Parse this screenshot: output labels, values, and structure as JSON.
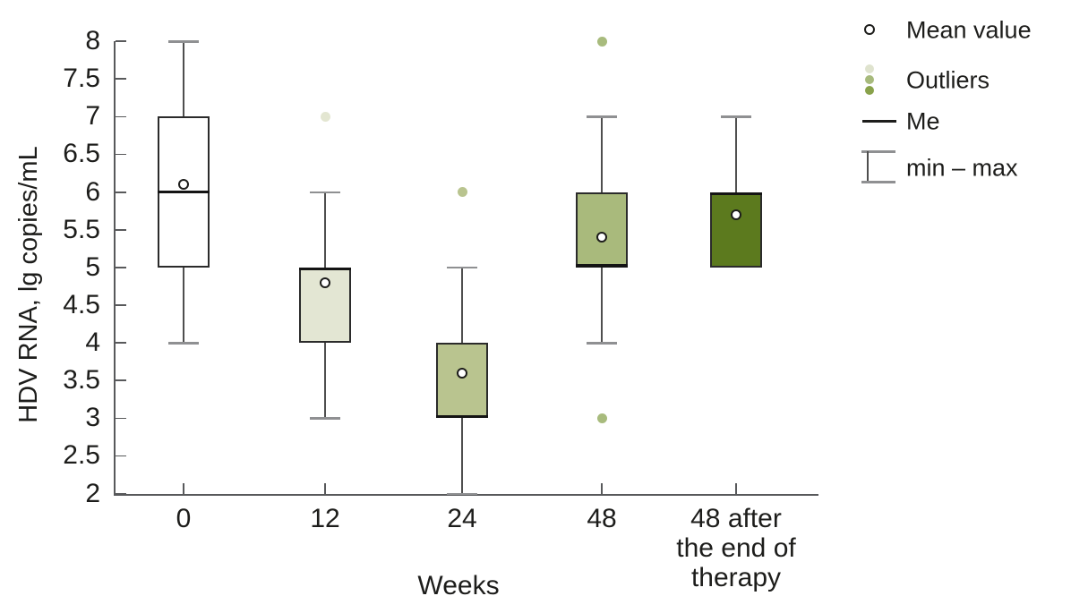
{
  "chart_data": {
    "type": "box",
    "title": "",
    "xlabel": "Weeks",
    "ylabel": "HDV RNA, lg copies/mL",
    "ylim": [
      2,
      8
    ],
    "grid": false,
    "yticks": [
      8,
      7.5,
      7,
      6.5,
      6,
      5.5,
      5,
      4.5,
      4,
      3.5,
      3,
      2.5,
      2
    ],
    "ytick_labels": [
      "8",
      "7.5",
      "7",
      "6.5",
      "6",
      "5.5",
      "5",
      "4.5",
      "4",
      "3.5",
      "3",
      "2.5",
      "2"
    ],
    "categories": [
      "0",
      "12",
      "24",
      "48",
      "48 after\nthe end of\ntherapy"
    ],
    "series": [
      {
        "category": "0",
        "min": 4,
        "q1": 5,
        "median": 6,
        "q3": 7,
        "max": 8,
        "mean": 6.1,
        "outliers": [],
        "fill": "#ffffff",
        "outlier_color": "#a8bb7d"
      },
      {
        "category": "12",
        "min": 3,
        "q1": 4,
        "median": 5,
        "q3": 5,
        "max": 6,
        "mean": 4.8,
        "outliers": [
          7
        ],
        "fill": "#e3e6d3",
        "outlier_color": "#e3e6d1"
      },
      {
        "category": "24",
        "min": 2,
        "q1": 3,
        "median": 3,
        "q3": 4,
        "max": 5,
        "mean": 3.6,
        "outliers": [
          6
        ],
        "fill": "#b9c48f",
        "outlier_color": "#b9c48f"
      },
      {
        "category": "48",
        "min": 4,
        "q1": 5,
        "median": 5,
        "q3": 6,
        "max": 7,
        "mean": 5.4,
        "outliers": [
          8,
          3
        ],
        "fill": "#a9ba7c",
        "outlier_color": "#a8bb7d"
      },
      {
        "category": "48 after\nthe end of\ntherapy",
        "min": 5,
        "q1": 5,
        "median": 6,
        "q3": 6,
        "max": 7,
        "mean": 5.7,
        "outliers": [],
        "fill": "#5c7a1e",
        "outlier_color": "#a8bb7d"
      }
    ],
    "legend_position": "top-right"
  },
  "legend": {
    "items": [
      {
        "label": "Mean value",
        "glyph": "mean-circle"
      },
      {
        "label": "Outliers",
        "glyph": "outlier-dots",
        "colors": [
          "#dfe3ce",
          "#a7ba7c",
          "#89a24b"
        ]
      },
      {
        "label": "Me",
        "glyph": "median-line"
      },
      {
        "label": "min – max",
        "glyph": "minmax-whisker"
      }
    ]
  },
  "colors": {
    "axis": "#58595b",
    "whisker_stem": "#4f4f4f",
    "whisker_cap": "#8f9092",
    "median": "#141414",
    "box_border": "#2b2b2b",
    "text": "#1d1d1b"
  }
}
